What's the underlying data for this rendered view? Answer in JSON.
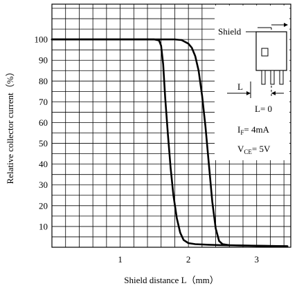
{
  "chart_data": {
    "type": "line",
    "title": "",
    "xlabel": "Shield distance L（mm）",
    "ylabel": "Relative collector current（%）",
    "xlim": [
      0,
      3.5
    ],
    "ylim": [
      0,
      117
    ],
    "x_ticks": [
      1,
      2,
      3
    ],
    "x_tick_labels": [
      "1",
      "2",
      "3"
    ],
    "y_ticks": [
      10,
      20,
      30,
      40,
      50,
      60,
      70,
      80,
      90,
      100
    ],
    "y_tick_labels": [
      "10",
      "20",
      "30",
      "40",
      "50",
      "60",
      "70",
      "80",
      "90",
      "100"
    ],
    "x_minor_step": 0.2,
    "y_minor_step": 5,
    "grid": true,
    "legend": "none",
    "series": [
      {
        "x": [
          0,
          1.0,
          1.5,
          1.57,
          1.6,
          1.63,
          1.66,
          1.7,
          1.74,
          1.78,
          1.83,
          1.88,
          1.93,
          2.0,
          2.1,
          2.3,
          2.5,
          2.8,
          3.1,
          3.45
        ],
        "y": [
          100,
          100,
          100,
          99.5,
          97,
          88,
          72,
          54,
          38,
          25,
          14,
          7,
          3.5,
          2,
          1.5,
          1.2,
          1.0,
          0.8,
          0.7,
          0.5
        ]
      },
      {
        "x": [
          0,
          1.0,
          1.8,
          1.9,
          2.0,
          2.05,
          2.1,
          2.15,
          2.2,
          2.25,
          2.3,
          2.35,
          2.4,
          2.45,
          2.5,
          2.6,
          2.8,
          3.1,
          3.45
        ],
        "y": [
          100,
          100,
          100,
          99.7,
          98,
          96,
          92,
          85,
          73,
          58,
          40,
          22,
          9,
          3,
          1.5,
          1.0,
          0.8,
          0.6,
          0.5
        ]
      }
    ],
    "annotations": {
      "shield_label": "Shield",
      "l_label": "L",
      "l_zero": "L= 0",
      "if_main": "I",
      "if_sub": "F",
      "if_value": "= 4mA",
      "vce_main": "V",
      "vce_sub": "CE",
      "vce_value": "= 5V"
    }
  }
}
